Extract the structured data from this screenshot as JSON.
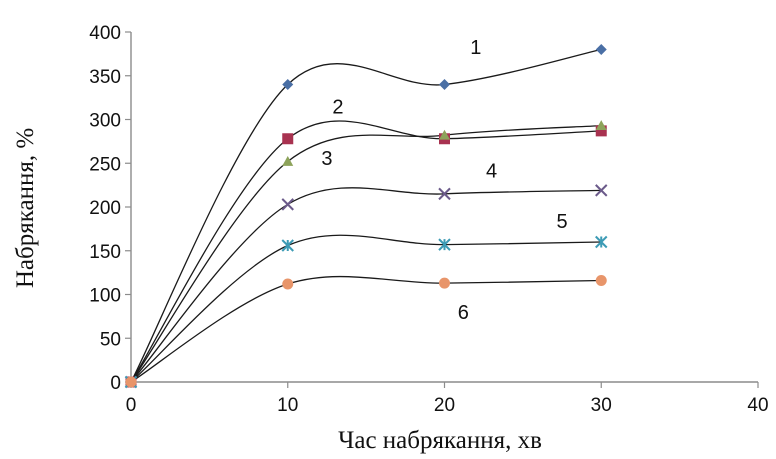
{
  "chart_data": {
    "type": "scatter",
    "title": "",
    "xlabel": "Час набрякання, хв",
    "ylabel": "Набрякання, %",
    "xlim": [
      0,
      40
    ],
    "ylim": [
      0,
      400
    ],
    "xticks": [
      0,
      10,
      20,
      30,
      40
    ],
    "yticks": [
      0,
      50,
      100,
      150,
      200,
      250,
      300,
      350,
      400
    ],
    "grid": false,
    "legend": "none",
    "line_style": "smooth",
    "line_color": "#1a1a1a",
    "series": [
      {
        "name": "1",
        "x": [
          0,
          10,
          20,
          30
        ],
        "y": [
          0,
          340,
          340,
          380
        ],
        "marker": "diamond",
        "color": "#4a6fa5",
        "label_at": [
          22,
          375
        ]
      },
      {
        "name": "2",
        "x": [
          0,
          10,
          20,
          30
        ],
        "y": [
          0,
          278,
          278,
          287
        ],
        "marker": "square",
        "color": "#a83250",
        "label_at": [
          13.2,
          307
        ]
      },
      {
        "name": "3",
        "x": [
          0,
          10,
          20,
          30
        ],
        "y": [
          0,
          252,
          282,
          293
        ],
        "marker": "triangle",
        "color": "#8da35a",
        "label_at": [
          12.5,
          248
        ]
      },
      {
        "name": "4",
        "x": [
          0,
          10,
          20,
          30
        ],
        "y": [
          0,
          203,
          215,
          219
        ],
        "marker": "x",
        "color": "#6b5a8a",
        "label_at": [
          23,
          234
        ]
      },
      {
        "name": "5",
        "x": [
          0,
          10,
          20,
          30
        ],
        "y": [
          0,
          156,
          157,
          160
        ],
        "marker": "star",
        "color": "#3d9bb5",
        "label_at": [
          27.5,
          176
        ]
      },
      {
        "name": "6",
        "x": [
          0,
          10,
          20,
          30
        ],
        "y": [
          0,
          112,
          113,
          116
        ],
        "marker": "circle",
        "color": "#e8956a",
        "label_at": [
          21.2,
          72
        ]
      }
    ]
  }
}
